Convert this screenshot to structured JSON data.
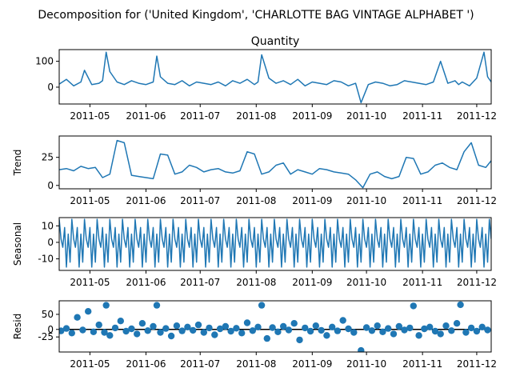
{
  "figure": {
    "suptitle": "Decomposition for ('United Kingdom', 'CHARLOTTE BAG VINTAGE ALPHABET ')",
    "line_color": "#1f77b4"
  },
  "chart_data": [
    {
      "type": "line",
      "panel": "observed",
      "title": "Quantity",
      "ylabel": "",
      "x_range": [
        "2011-04-14",
        "2011-12-09"
      ],
      "xticks": [
        "2011-05",
        "2011-06",
        "2011-07",
        "2011-08",
        "2011-09",
        "2011-10",
        "2011-11",
        "2011-12"
      ],
      "ylim": [
        -65,
        145
      ],
      "yticks": [
        0,
        100
      ],
      "x": [
        "2011-04-14",
        "2011-04-18",
        "2011-04-22",
        "2011-04-26",
        "2011-04-28",
        "2011-05-02",
        "2011-05-06",
        "2011-05-08",
        "2011-05-10",
        "2011-05-12",
        "2011-05-16",
        "2011-05-20",
        "2011-05-24",
        "2011-05-28",
        "2011-06-01",
        "2011-06-05",
        "2011-06-07",
        "2011-06-09",
        "2011-06-13",
        "2011-06-17",
        "2011-06-21",
        "2011-06-25",
        "2011-06-29",
        "2011-07-03",
        "2011-07-07",
        "2011-07-11",
        "2011-07-15",
        "2011-07-19",
        "2011-07-23",
        "2011-07-27",
        "2011-07-31",
        "2011-08-02",
        "2011-08-04",
        "2011-08-08",
        "2011-08-12",
        "2011-08-16",
        "2011-08-20",
        "2011-08-24",
        "2011-08-28",
        "2011-09-01",
        "2011-09-05",
        "2011-09-09",
        "2011-09-13",
        "2011-09-17",
        "2011-09-21",
        "2011-09-25",
        "2011-09-28",
        "2011-10-02",
        "2011-10-06",
        "2011-10-10",
        "2011-10-14",
        "2011-10-18",
        "2011-10-22",
        "2011-10-26",
        "2011-10-30",
        "2011-11-03",
        "2011-11-07",
        "2011-11-11",
        "2011-11-15",
        "2011-11-19",
        "2011-11-21",
        "2011-11-23",
        "2011-11-27",
        "2011-12-01",
        "2011-12-05",
        "2011-12-07",
        "2011-12-09"
      ],
      "values": [
        12,
        30,
        5,
        20,
        65,
        10,
        15,
        25,
        135,
        60,
        20,
        10,
        25,
        15,
        10,
        20,
        120,
        40,
        15,
        10,
        25,
        5,
        20,
        15,
        10,
        20,
        5,
        25,
        15,
        30,
        10,
        20,
        125,
        35,
        15,
        25,
        10,
        30,
        5,
        20,
        15,
        10,
        25,
        20,
        5,
        15,
        -60,
        10,
        20,
        15,
        5,
        10,
        25,
        20,
        15,
        10,
        20,
        100,
        15,
        25,
        10,
        20,
        5,
        35,
        135,
        40,
        20
      ]
    },
    {
      "type": "line",
      "panel": "trend",
      "title": "",
      "ylabel": "Trend",
      "x_range": [
        "2011-04-14",
        "2011-12-09"
      ],
      "xticks": [
        "2011-05",
        "2011-06",
        "2011-07",
        "2011-08",
        "2011-09",
        "2011-10",
        "2011-11",
        "2011-12"
      ],
      "ylim": [
        -3,
        44
      ],
      "yticks": [
        0,
        25
      ],
      "x": [
        "2011-04-14",
        "2011-04-18",
        "2011-04-22",
        "2011-04-26",
        "2011-04-30",
        "2011-05-04",
        "2011-05-08",
        "2011-05-12",
        "2011-05-16",
        "2011-05-20",
        "2011-05-24",
        "2011-05-28",
        "2011-06-01",
        "2011-06-05",
        "2011-06-09",
        "2011-06-13",
        "2011-06-17",
        "2011-06-21",
        "2011-06-25",
        "2011-06-29",
        "2011-07-03",
        "2011-07-07",
        "2011-07-11",
        "2011-07-15",
        "2011-07-19",
        "2011-07-23",
        "2011-07-27",
        "2011-07-31",
        "2011-08-04",
        "2011-08-08",
        "2011-08-12",
        "2011-08-16",
        "2011-08-20",
        "2011-08-24",
        "2011-08-28",
        "2011-09-01",
        "2011-09-05",
        "2011-09-09",
        "2011-09-13",
        "2011-09-17",
        "2011-09-21",
        "2011-09-25",
        "2011-09-29",
        "2011-10-03",
        "2011-10-07",
        "2011-10-11",
        "2011-10-15",
        "2011-10-19",
        "2011-10-23",
        "2011-10-27",
        "2011-10-31",
        "2011-11-04",
        "2011-11-08",
        "2011-11-12",
        "2011-11-16",
        "2011-11-20",
        "2011-11-24",
        "2011-11-28",
        "2011-12-02",
        "2011-12-06",
        "2011-12-09"
      ],
      "values": [
        14,
        15,
        13,
        17,
        15,
        16,
        7,
        10,
        40,
        38,
        9,
        8,
        7,
        6,
        28,
        27,
        10,
        12,
        18,
        16,
        12,
        14,
        15,
        12,
        11,
        13,
        30,
        28,
        10,
        12,
        18,
        20,
        10,
        14,
        12,
        10,
        15,
        14,
        12,
        11,
        10,
        5,
        -2,
        10,
        12,
        8,
        6,
        8,
        25,
        24,
        10,
        12,
        18,
        20,
        16,
        14,
        30,
        38,
        18,
        16,
        22
      ]
    },
    {
      "type": "line",
      "panel": "seasonal",
      "title": "",
      "ylabel": "Seasonal",
      "x_range": [
        "2011-04-14",
        "2011-12-09"
      ],
      "xticks": [
        "2011-05",
        "2011-06",
        "2011-07",
        "2011-08",
        "2011-09",
        "2011-10",
        "2011-11",
        "2011-12"
      ],
      "ylim": [
        -17,
        15
      ],
      "yticks": [
        -10,
        0,
        10
      ],
      "period_days": 7,
      "pattern": [
        14,
        2,
        -3,
        9,
        -15,
        5,
        -12
      ]
    },
    {
      "type": "scatter",
      "panel": "resid",
      "title": "",
      "ylabel": "Resid",
      "x_range": [
        "2011-04-14",
        "2011-12-09"
      ],
      "xticks": [
        "2011-05",
        "2011-06",
        "2011-07",
        "2011-08",
        "2011-09",
        "2011-10",
        "2011-11",
        "2011-12"
      ],
      "ylim": [
        -75,
        95
      ],
      "yticks": [
        -25,
        0,
        50
      ],
      "zero_line": true,
      "x": [
        "2011-04-15",
        "2011-04-18",
        "2011-04-21",
        "2011-04-24",
        "2011-04-27",
        "2011-04-30",
        "2011-05-03",
        "2011-05-06",
        "2011-05-09",
        "2011-05-10",
        "2011-05-12",
        "2011-05-15",
        "2011-05-18",
        "2011-05-21",
        "2011-05-24",
        "2011-05-27",
        "2011-05-30",
        "2011-06-02",
        "2011-06-05",
        "2011-06-07",
        "2011-06-09",
        "2011-06-12",
        "2011-06-15",
        "2011-06-18",
        "2011-06-21",
        "2011-06-24",
        "2011-06-27",
        "2011-06-30",
        "2011-07-03",
        "2011-07-06",
        "2011-07-09",
        "2011-07-12",
        "2011-07-15",
        "2011-07-18",
        "2011-07-21",
        "2011-07-24",
        "2011-07-27",
        "2011-07-30",
        "2011-08-02",
        "2011-08-04",
        "2011-08-07",
        "2011-08-10",
        "2011-08-13",
        "2011-08-16",
        "2011-08-19",
        "2011-08-22",
        "2011-08-25",
        "2011-08-28",
        "2011-08-31",
        "2011-09-03",
        "2011-09-06",
        "2011-09-09",
        "2011-09-12",
        "2011-09-15",
        "2011-09-18",
        "2011-09-21",
        "2011-09-24",
        "2011-09-28",
        "2011-10-01",
        "2011-10-04",
        "2011-10-07",
        "2011-10-10",
        "2011-10-13",
        "2011-10-16",
        "2011-10-19",
        "2011-10-22",
        "2011-10-25",
        "2011-10-27",
        "2011-10-30",
        "2011-11-02",
        "2011-11-05",
        "2011-11-08",
        "2011-11-11",
        "2011-11-14",
        "2011-11-17",
        "2011-11-20",
        "2011-11-22",
        "2011-11-25",
        "2011-11-28",
        "2011-12-01",
        "2011-12-04",
        "2011-12-07"
      ],
      "values": [
        -5,
        3,
        -12,
        40,
        -2,
        60,
        -8,
        15,
        -10,
        80,
        -20,
        5,
        28,
        -6,
        2,
        -15,
        20,
        -4,
        10,
        80,
        -10,
        3,
        -22,
        12,
        -5,
        8,
        -3,
        15,
        -10,
        5,
        -18,
        2,
        10,
        -6,
        4,
        -12,
        22,
        -4,
        8,
        80,
        -30,
        6,
        -8,
        10,
        -2,
        20,
        -35,
        5,
        -6,
        12,
        -3,
        -20,
        8,
        -5,
        30,
        2,
        -10,
        -70,
        6,
        -4,
        12,
        -8,
        3,
        -15,
        10,
        -2,
        5,
        78,
        -20,
        2,
        8,
        -6,
        -15,
        12,
        -4,
        20,
        82,
        -10,
        5,
        -6,
        8,
        -2
      ]
    }
  ]
}
